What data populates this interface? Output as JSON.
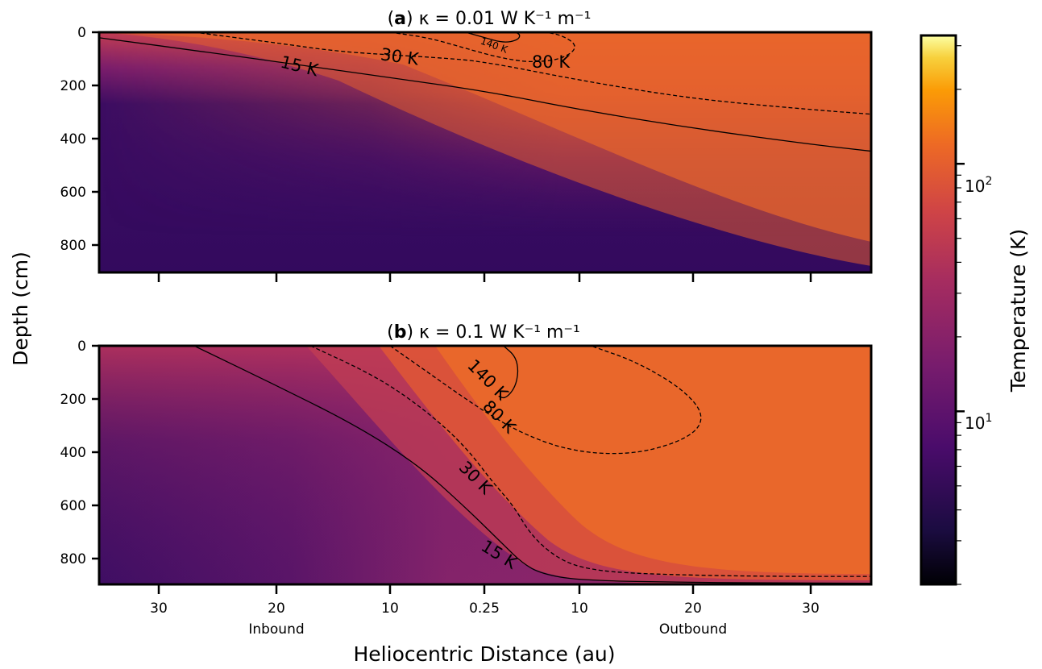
{
  "chart_data": [
    {
      "type": "heatmap",
      "panel": "a",
      "title_tag": "a",
      "title_rest": " κ = 0.01 W K⁻¹ m⁻¹",
      "ylabel": "Depth (cm)",
      "xlabel": "Heliocentric Distance (au)",
      "y_ticks": [
        "0",
        "200",
        "400",
        "600",
        "800"
      ],
      "x_ticks": [
        "30",
        "20",
        "10",
        "0.25",
        "10",
        "20",
        "30"
      ],
      "x_tick_labels_shown": false,
      "ylim": [
        900,
        0
      ],
      "contours": [
        {
          "level_K": 15,
          "label": "15 K",
          "style": "solid",
          "points": [
            [
              -36,
              15
            ],
            [
              -25,
              80
            ],
            [
              -20,
              110
            ],
            [
              -10,
              170
            ],
            [
              0,
              220
            ],
            [
              10,
              290
            ],
            [
              20,
              360
            ],
            [
              30,
              420
            ],
            [
              36,
              450
            ]
          ]
        },
        {
          "level_K": 30,
          "label": "30 K",
          "style": "dashed",
          "points": [
            [
              -27,
              0
            ],
            [
              -20,
              40
            ],
            [
              -15,
              70
            ],
            [
              -10,
              85
            ],
            [
              -5,
              95
            ],
            [
              0,
              110
            ],
            [
              10,
              180
            ],
            [
              20,
              250
            ],
            [
              30,
              290
            ],
            [
              36,
              310
            ]
          ]
        },
        {
          "level_K": 80,
          "label": "80 K",
          "style": "dashed",
          "points": [
            [
              -10,
              0
            ],
            [
              -6,
              20
            ],
            [
              -2,
              60
            ],
            [
              1,
              90
            ],
            [
              4,
              110
            ],
            [
              6,
              110
            ],
            [
              8,
              100
            ],
            [
              9.5,
              70
            ],
            [
              9.5,
              40
            ],
            [
              8,
              10
            ],
            [
              6.5,
              0
            ]
          ]
        },
        {
          "level_K": 140,
          "label": "140 K",
          "style": "solid",
          "points": [
            [
              -2,
              0
            ],
            [
              0,
              20
            ],
            [
              2,
              40
            ],
            [
              3.5,
              30
            ],
            [
              3.8,
              10
            ],
            [
              3.3,
              0
            ]
          ]
        }
      ]
    },
    {
      "type": "heatmap",
      "panel": "b",
      "title_tag": "b",
      "title_rest": " κ = 0.1 W K⁻¹ m⁻¹",
      "ylabel": "Depth (cm)",
      "xlabel": "Heliocentric Distance (au)",
      "y_ticks": [
        "0",
        "200",
        "400",
        "600",
        "800"
      ],
      "x_ticks": [
        "30",
        "20",
        "10",
        "0.25",
        "10",
        "20",
        "30"
      ],
      "x_sublabels": {
        "inbound": "Inbound",
        "outbound": "Outbound"
      },
      "ylim": [
        900,
        0
      ],
      "contours": [
        {
          "level_K": 15,
          "label": "15 K",
          "style": "solid",
          "points": [
            [
              -27,
              0
            ],
            [
              -20,
              150
            ],
            [
              -13,
              300
            ],
            [
              -7,
              450
            ],
            [
              -2,
              610
            ],
            [
              2,
              750
            ],
            [
              4,
              820
            ],
            [
              6,
              860
            ],
            [
              10,
              885
            ],
            [
              20,
              893
            ],
            [
              30,
              895
            ],
            [
              36,
              896
            ]
          ]
        },
        {
          "level_K": 30,
          "label": "30 K",
          "style": "dashed",
          "points": [
            [
              -17,
              0
            ],
            [
              -11,
              120
            ],
            [
              -6,
              250
            ],
            [
              -2,
              380
            ],
            [
              1,
              520
            ],
            [
              3,
              600
            ],
            [
              5,
              720
            ],
            [
              8,
              810
            ],
            [
              11,
              845
            ],
            [
              15,
              860
            ],
            [
              25,
              870
            ],
            [
              36,
              870
            ]
          ]
        },
        {
          "level_K": 80,
          "label": "80 K",
          "style": "dashed",
          "points": [
            [
              -10,
              0
            ],
            [
              -6,
              100
            ],
            [
              -2,
              200
            ],
            [
              1,
              270
            ],
            [
              4,
              330
            ],
            [
              8,
              385
            ],
            [
              12,
              410
            ],
            [
              16,
              400
            ],
            [
              20,
              340
            ],
            [
              21,
              260
            ],
            [
              19,
              160
            ],
            [
              15,
              60
            ],
            [
              11,
              0
            ]
          ]
        },
        {
          "level_K": 140,
          "label": "140 K",
          "style": "solid",
          "points": [
            [
              2,
              0
            ],
            [
              3.3,
              40
            ],
            [
              3.6,
              100
            ],
            [
              3.2,
              160
            ],
            [
              2.2,
              200
            ],
            [
              1.5,
              190
            ]
          ]
        }
      ]
    }
  ],
  "colorbar": {
    "label": "Temperature (K)",
    "scale": "log",
    "range_K": [
      2,
      330
    ],
    "major_ticks": [
      {
        "value": 10,
        "base": "10",
        "exp": "1"
      },
      {
        "value": 100,
        "base": "10",
        "exp": "2"
      }
    ],
    "colormap": "inferno"
  },
  "colors": {
    "cold": "#330a5e",
    "mid": "#a12a63",
    "warm": "#e8602a",
    "hot": "#fcb51a",
    "hottest": "#fcf3a8"
  }
}
